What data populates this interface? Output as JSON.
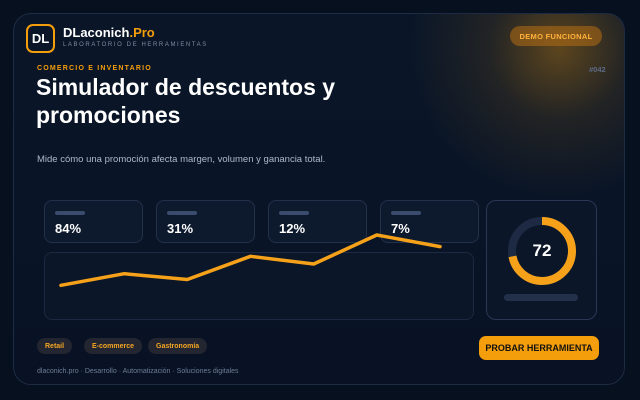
{
  "brand": {
    "initials": "DL",
    "name": "DLaconich",
    "suffix": ".Pro",
    "tagline": "LABORATORIO DE HERRAMIENTAS"
  },
  "badge": {
    "label": "DEMO FUNCIONAL"
  },
  "hero": {
    "eyebrow": "COMERCIO E INVENTARIO",
    "code": "#042",
    "title": "Simulador de descuentos y promociones",
    "subtitle": "Mide cómo una promoción afecta margen, volumen y ganancia total."
  },
  "stats": [
    "84%",
    "31%",
    "12%",
    "7%"
  ],
  "trend": {
    "values": [
      1,
      2.2,
      1.6,
      4,
      3.2,
      6.2,
      5
    ]
  },
  "score": {
    "value": "72",
    "fraction": 0.72
  },
  "tags": [
    "Retail",
    "E-commerce",
    "Gastronomía"
  ],
  "cta": {
    "label": "PROBAR HERRAMIENTA"
  },
  "footer": {
    "text": "dlaconich.pro · Desarrollo · Automatización · Soluciones digitales"
  },
  "colors": {
    "accent": "#f59e0b",
    "background": "#06101f",
    "panel": "#0b1628"
  }
}
